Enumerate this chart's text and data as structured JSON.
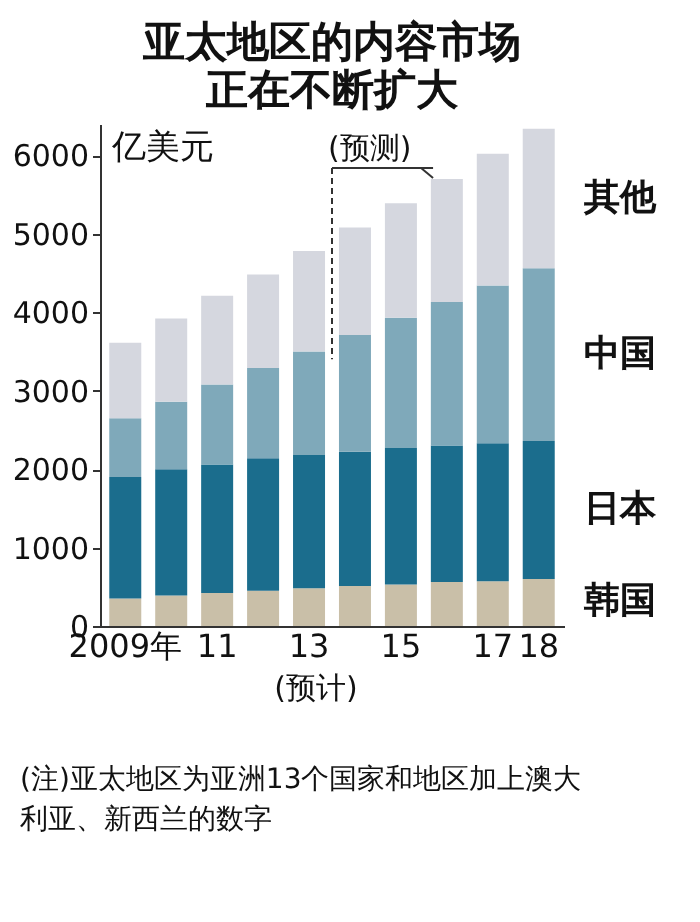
{
  "chart_data": {
    "type": "bar",
    "stacked": true,
    "title": [
      "亚太地区的内容市场",
      "正在不断扩大"
    ],
    "ylabel": "亿美元",
    "categories": [
      "2009年",
      null,
      "11",
      null,
      "13",
      null,
      "15",
      null,
      "17",
      "18"
    ],
    "series": [
      {
        "name": "韩国",
        "color": "#c9bfa8",
        "values": [
          350,
          390,
          420,
          450,
          480,
          510,
          530,
          560,
          570,
          600
        ]
      },
      {
        "name": "日本",
        "color": "#1b6d8d",
        "values": [
          1550,
          1610,
          1640,
          1690,
          1700,
          1710,
          1740,
          1740,
          1760,
          1760
        ]
      },
      {
        "name": "中国",
        "color": "#7fa9ba",
        "values": [
          750,
          860,
          1020,
          1150,
          1320,
          1490,
          1660,
          1830,
          2010,
          2200
        ]
      },
      {
        "name": "其他",
        "color": "#d5d7df",
        "values": [
          960,
          1060,
          1130,
          1190,
          1280,
          1370,
          1460,
          1570,
          1680,
          1780
        ]
      }
    ],
    "ylim": [
      0,
      6400
    ],
    "yticks": [
      0,
      1000,
      2000,
      3000,
      4000,
      5000,
      6000
    ],
    "grid": false,
    "legend": false,
    "annotations": [
      "(预计)",
      "(预测)",
      "(注)亚太地区为亚洲13个国家和地区加上澳大利亚、新西兰的数字"
    ]
  }
}
